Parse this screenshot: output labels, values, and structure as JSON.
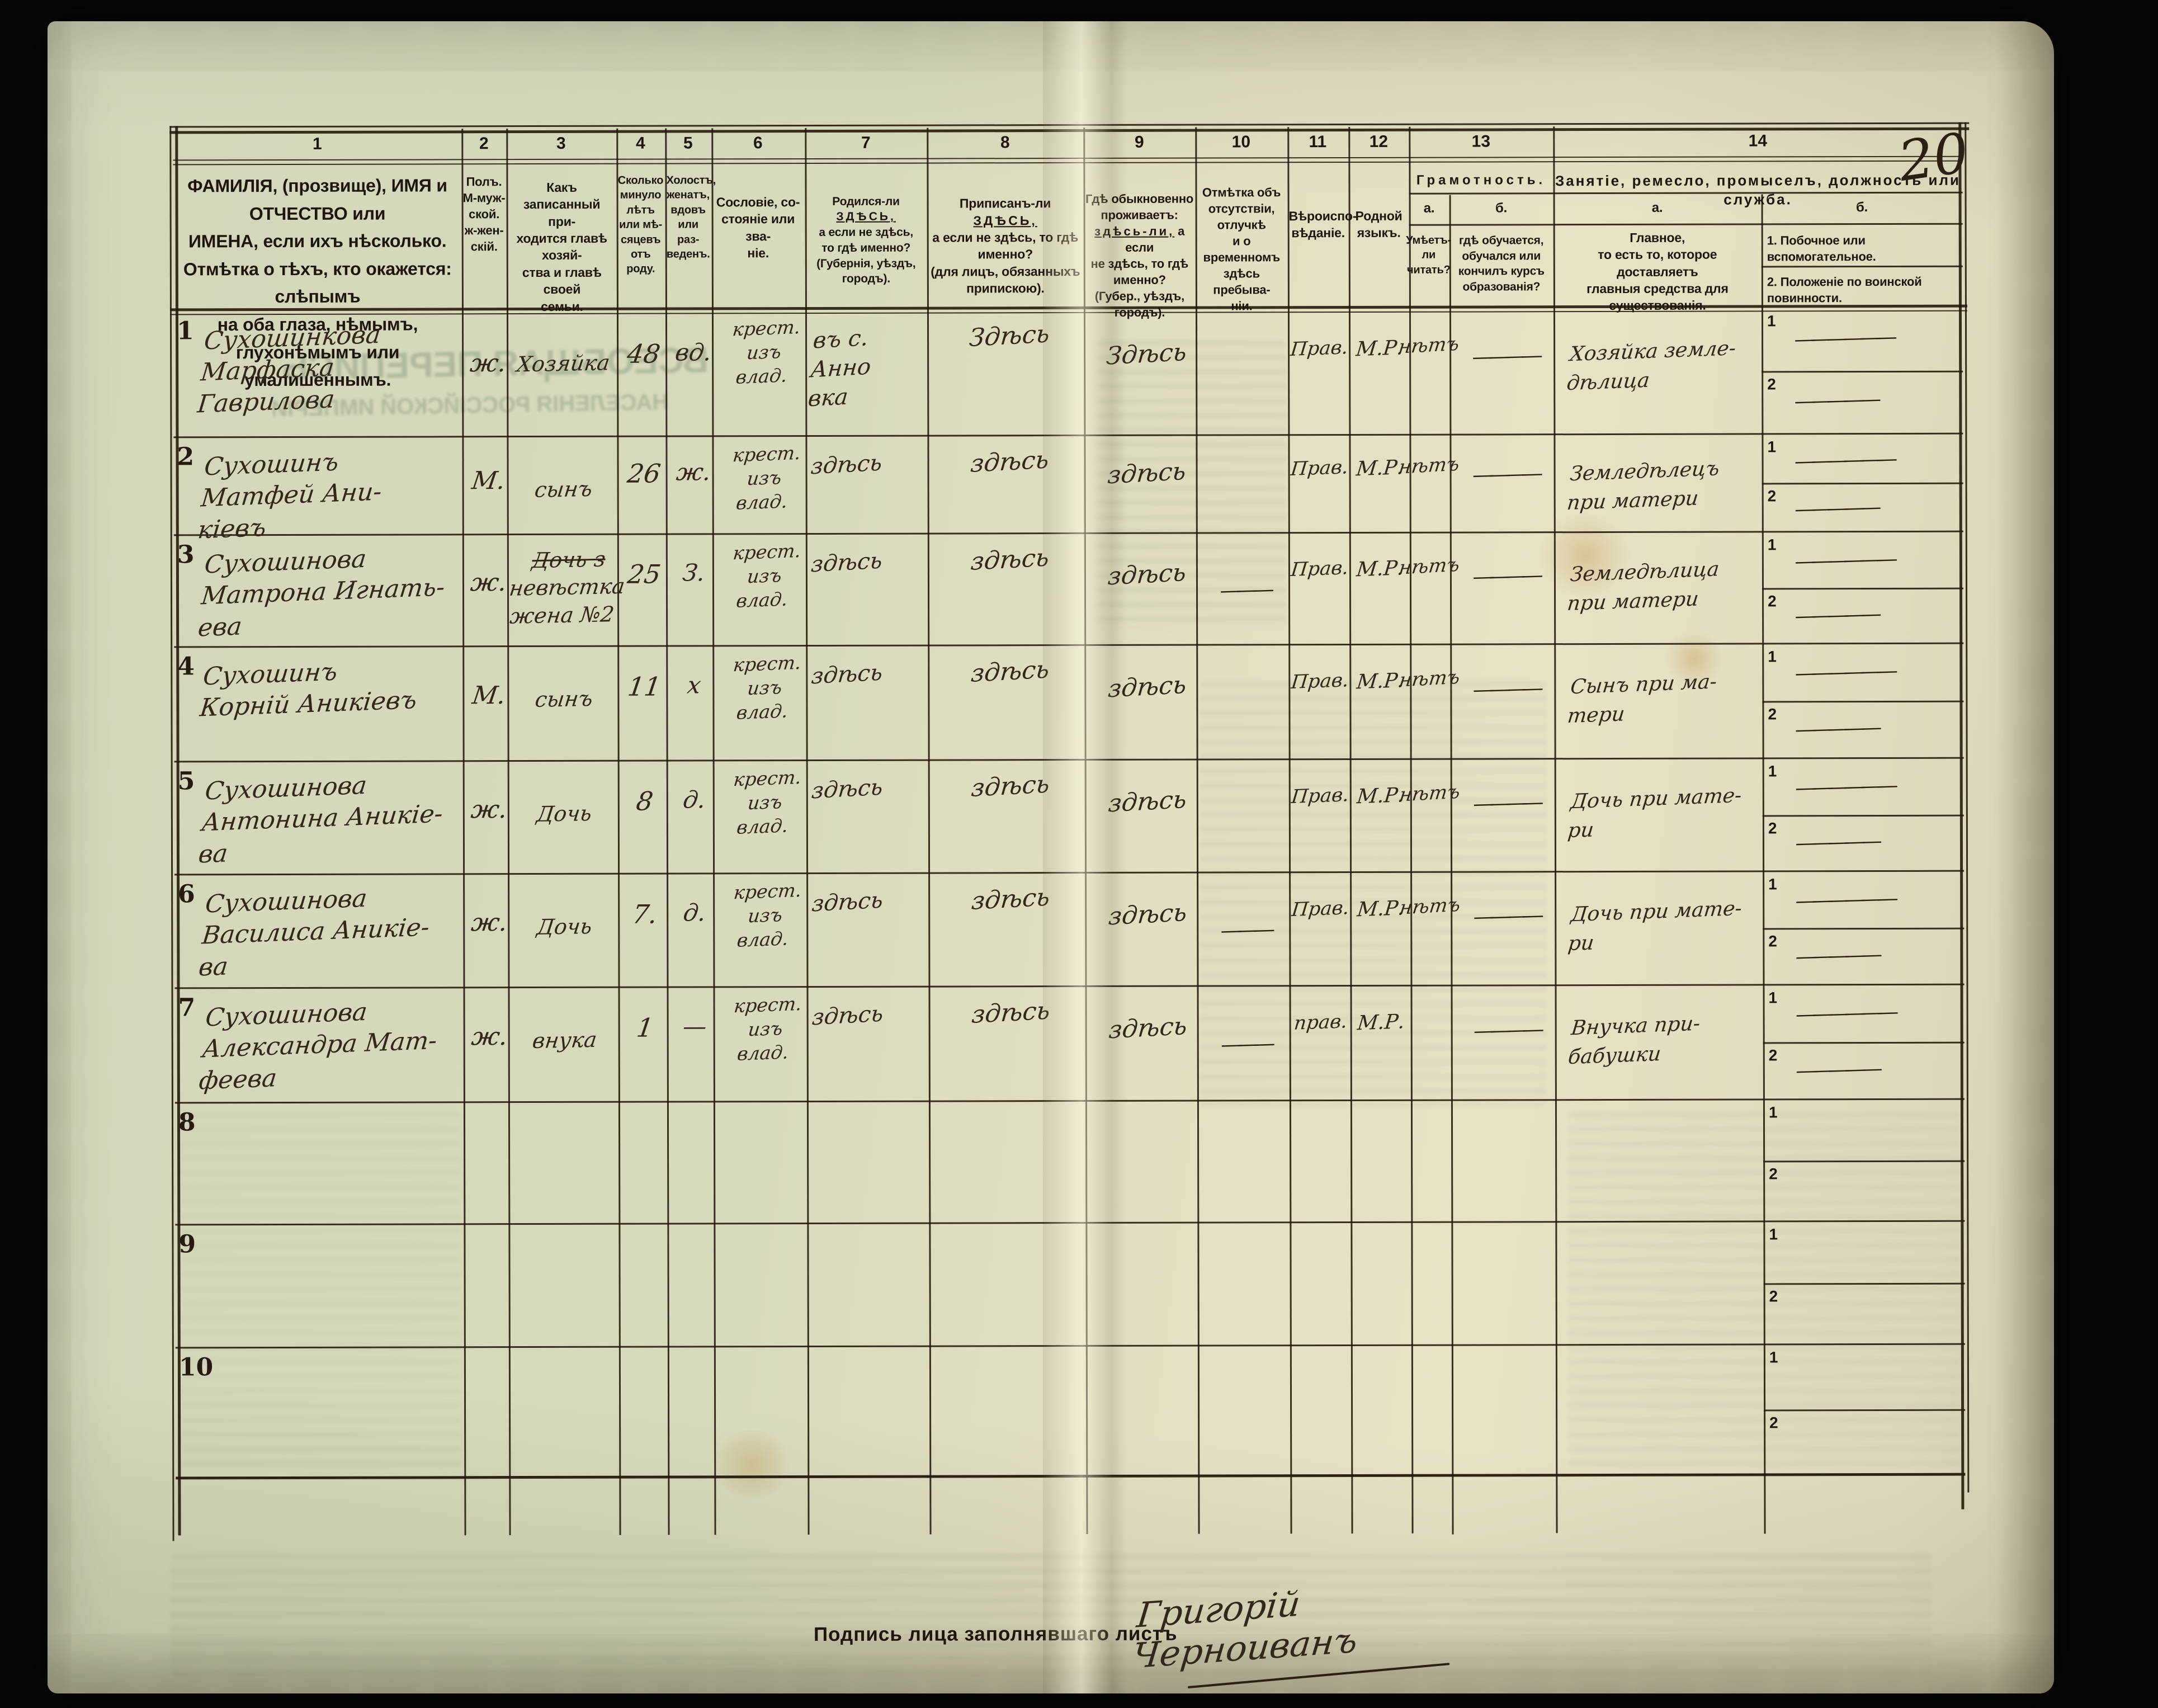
{
  "page": {
    "page_number": "20",
    "signature_label": "Подпись лица заполнявшаго листъ",
    "signature_value": "Григорій Черноиванъ"
  },
  "bleedthrough": {
    "line1": "ВСЕОБЩАЯ ПЕРЕПИСЬ",
    "line2": "НАСЕЛЕНІЯ РОССІЙСКОЙ ИМПЕРІИ"
  },
  "header": {
    "nums": [
      "1",
      "2",
      "3",
      "4",
      "5",
      "6",
      "7",
      "8",
      "9",
      "10",
      "11",
      "12",
      "13",
      "14"
    ],
    "col1": "ФАМИЛІЯ, (прозвище), ИМЯ и ОТЧЕСТВО или\nИМЕНА, если ихъ нѣсколько.\nОтмѣтка о тѣхъ, кто окажется: слѣпымъ\nна оба глаза, нѣмымъ, глухонѣмымъ или\nумалишеннымъ.",
    "col2": "Полъ.\nМ-муж-\nской.\nж-жен-\nскій.",
    "col3": "Какъ записанный при-\nходится главѣ хозяй-\nства и главѣ своей\nсемьи.",
    "col4": "Сколько\nминуло\nлѣтъ\nили мѣ-\nсяцевъ\nотъ роду.",
    "col5": "Холостъ,\nженатъ,\nвдовъ\nили раз-\nведенъ.",
    "col6": "Сословіе, со-\nстояніе или зва-\nніе.",
    "col7": {
      "lead": "Родился-ли ",
      "emph": "ЗДѢСЬ,",
      "rest": "\nа если не здѣсь,\nто гдѣ именно?\n(Губернія, уѣздъ, городъ)."
    },
    "col8": {
      "lead": "Приписанъ-ли ",
      "emph": "ЗДѢСЬ,",
      "rest": "\nа если не здѣсь, то гдѣ\nименно?\n(для лицъ, обязанныхъ\nприпискою)."
    },
    "col9": {
      "lead": "Гдѣ обыкновенно\nпроживаетъ:\n",
      "emph": "здѣсь-ли,",
      "rest": " а если\nне здѣсь, то гдѣ\nименно?\n(Губер., уѣздъ, городъ)."
    },
    "col10": "Отмѣтка объ\nотсутствіи, отлучкѣ\nи о временномъ\nздѣсь пребыва-\nніи.",
    "col11": "Вѣроиспо-\nвѣданіе.",
    "col12": "Родной\nязыкъ.",
    "col13": {
      "title": "Грамотность.",
      "a_label": "а.",
      "b_label": "б.",
      "a_text": "Умѣетъ-\nли\nчитать?",
      "b_text": "гдѣ обучается,\nобучался или\nкончилъ курсъ\nобразованія?"
    },
    "col14": {
      "title": "Занятіе, ремесло, промыселъ, должность или служба.",
      "a_label": "а.",
      "b_label": "б.",
      "a_text": "Главное,\nто есть то, которое доставляетъ\nглавныя средства для существованія.",
      "b1_text": "1.  Побочное или вспомогательное.",
      "b2_text": "2.  Положеніе по воинской повинности."
    }
  },
  "rows": [
    {
      "num": "1",
      "name": "Сухошинкова\nМарфаска Гаврилова",
      "sex": "ж.",
      "relation_pre": "",
      "relation": "Хозяйка",
      "age": "48",
      "marital": "вд.",
      "estate": "крест.\nизъ\nвлад.",
      "born": "въ с. Анно\nвка",
      "registered": "Здѣсь",
      "residence": "Здѣсь",
      "absence": "",
      "religion": "Прав.",
      "language": "М.Р.",
      "lit_a": "нѣтъ",
      "lit_b": "————",
      "occ": "Хозяйка земле-\nдѣлица",
      "b1n": "1",
      "b2n": "2",
      "occ_b1": "——————",
      "occ_b2": "—————"
    },
    {
      "num": "2",
      "name": "Сухошинъ\nМатфей Ани-\nкіевъ",
      "sex": "М.",
      "relation_pre": "",
      "relation": "сынъ",
      "age": "26",
      "marital": "ж.",
      "estate": "крест.\nизъ\nвлад.",
      "born": "здѣсь",
      "registered": "здѣсь",
      "residence": "здѣсь",
      "absence": "",
      "religion": "Прав.",
      "language": "М.Р.",
      "lit_a": "нѣтъ",
      "lit_b": "————",
      "occ": "Земледѣлецъ\nпри матери",
      "b1n": "1",
      "b2n": "2",
      "occ_b1": "——————",
      "occ_b2": "—————"
    },
    {
      "num": "3",
      "name": "Сухошинова\nМатрона Игнать-\nева",
      "sex": "ж.",
      "relation_pre": "Дочь з",
      "relation": "невѣстка\nжена №2",
      "age": "25",
      "marital": "З.",
      "estate": "крест.\nизъ\nвлад.",
      "born": "здѣсь",
      "registered": "здѣсь",
      "residence": "здѣсь",
      "absence": "———",
      "religion": "Прав.",
      "language": "М.Р.",
      "lit_a": "нѣтъ",
      "lit_b": "————",
      "occ": "Земледѣлица\nпри матери",
      "b1n": "1",
      "b2n": "2",
      "occ_b1": "——————",
      "occ_b2": "—————"
    },
    {
      "num": "4",
      "name": "Сухошинъ\nКорній Аникіевъ",
      "sex": "М.",
      "relation_pre": "",
      "relation": "сынъ",
      "age": "11",
      "marital": "х",
      "estate": "крест.\nизъ\nвлад.",
      "born": "здѣсь",
      "registered": "здѣсь",
      "residence": "здѣсь",
      "absence": "",
      "religion": "Прав.",
      "language": "М.Р.",
      "lit_a": "нѣтъ",
      "lit_b": "————",
      "occ": "Сынъ при ма-\nтери",
      "b1n": "1",
      "b2n": "2",
      "occ_b1": "——————",
      "occ_b2": "—————"
    },
    {
      "num": "5",
      "name": "Сухошинова\nАнтонина Аникіе-\nва",
      "sex": "ж.",
      "relation_pre": "",
      "relation": "Дочь",
      "age": "8",
      "marital": "д.",
      "estate": "крест.\nизъ\nвлад.",
      "born": "здѣсь",
      "registered": "здѣсь",
      "residence": "здѣсь",
      "absence": "",
      "religion": "Прав.",
      "language": "М.Р.",
      "lit_a": "нѣтъ",
      "lit_b": "————",
      "occ": "Дочь при мате-\nри",
      "b1n": "1",
      "b2n": "2",
      "occ_b1": "——————",
      "occ_b2": "—————"
    },
    {
      "num": "6",
      "name": "Сухошинова\nВасилиса Аникіе-\nва",
      "sex": "ж.",
      "relation_pre": "",
      "relation": "Дочь",
      "age": "7.",
      "marital": "д.",
      "estate": "крест.\nизъ\nвлад.",
      "born": "здѣсь",
      "registered": "здѣсь",
      "residence": "здѣсь",
      "absence": "———",
      "religion": "Прав.",
      "language": "М.Р.",
      "lit_a": "нѣтъ",
      "lit_b": "————",
      "occ": "Дочь при мате-\nри",
      "b1n": "1",
      "b2n": "2",
      "occ_b1": "——————",
      "occ_b2": "—————"
    },
    {
      "num": "7",
      "name": "Сухошинова\nАлександра Мат-\nфеева",
      "sex": "ж.",
      "relation_pre": "",
      "relation": "внука",
      "age": "1",
      "marital": "—",
      "estate": "крест.\nизъ\nвлад.",
      "born": "здѣсь",
      "registered": "здѣсь",
      "residence": "здѣсь",
      "absence": "———",
      "religion": "прав.",
      "language": "М.Р.",
      "lit_a": "",
      "lit_b": "————",
      "occ": "Внучка при-\nбабушки",
      "b1n": "1",
      "b2n": "2",
      "occ_b1": "——————",
      "occ_b2": "—————"
    },
    {
      "num": "8",
      "name": "",
      "sex": "",
      "relation_pre": "",
      "relation": "",
      "age": "",
      "marital": "",
      "estate": "",
      "born": "",
      "registered": "",
      "residence": "",
      "absence": "",
      "religion": "",
      "language": "",
      "lit_a": "",
      "lit_b": "",
      "occ": "",
      "b1n": "1",
      "b2n": "2",
      "occ_b1": "",
      "occ_b2": ""
    },
    {
      "num": "9",
      "name": "",
      "sex": "",
      "relation_pre": "",
      "relation": "",
      "age": "",
      "marital": "",
      "estate": "",
      "born": "",
      "registered": "",
      "residence": "",
      "absence": "",
      "religion": "",
      "language": "",
      "lit_a": "",
      "lit_b": "",
      "occ": "",
      "b1n": "1",
      "b2n": "2",
      "occ_b1": "",
      "occ_b2": ""
    },
    {
      "num": "10",
      "name": "",
      "sex": "",
      "relation_pre": "",
      "relation": "",
      "age": "",
      "marital": "",
      "estate": "",
      "born": "",
      "registered": "",
      "residence": "",
      "absence": "",
      "religion": "",
      "language": "",
      "lit_a": "",
      "lit_b": "",
      "occ": "",
      "b1n": "1",
      "b2n": "2",
      "occ_b1": "",
      "occ_b2": ""
    }
  ]
}
